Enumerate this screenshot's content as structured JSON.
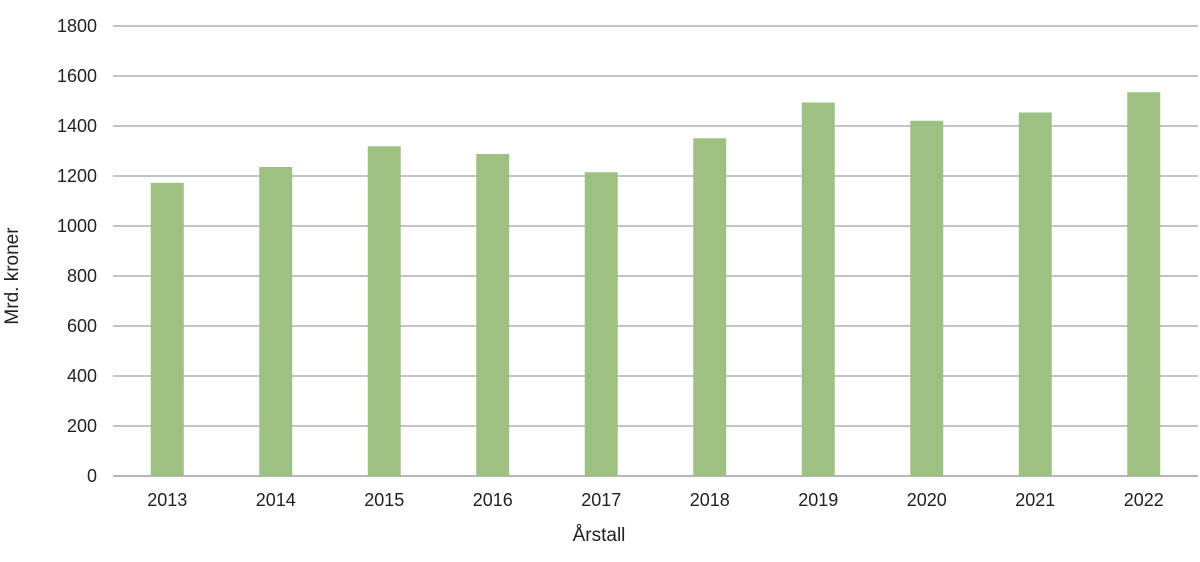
{
  "chart_data": {
    "type": "bar",
    "categories": [
      "2013",
      "2014",
      "2015",
      "2016",
      "2017",
      "2018",
      "2019",
      "2020",
      "2021",
      "2022"
    ],
    "values": [
      1173,
      1236,
      1319,
      1288,
      1215,
      1351,
      1494,
      1421,
      1454,
      1535
    ],
    "xlabel": "Årstall",
    "ylabel": "Mrd. kroner",
    "ylim": [
      0,
      1800
    ],
    "yticks": [
      0,
      200,
      400,
      600,
      800,
      1000,
      1200,
      1400,
      1600,
      1800
    ],
    "grid": true,
    "bar_color": "#9dc183",
    "grid_color": "#8a8a8a",
    "text_color": "#231f20"
  }
}
